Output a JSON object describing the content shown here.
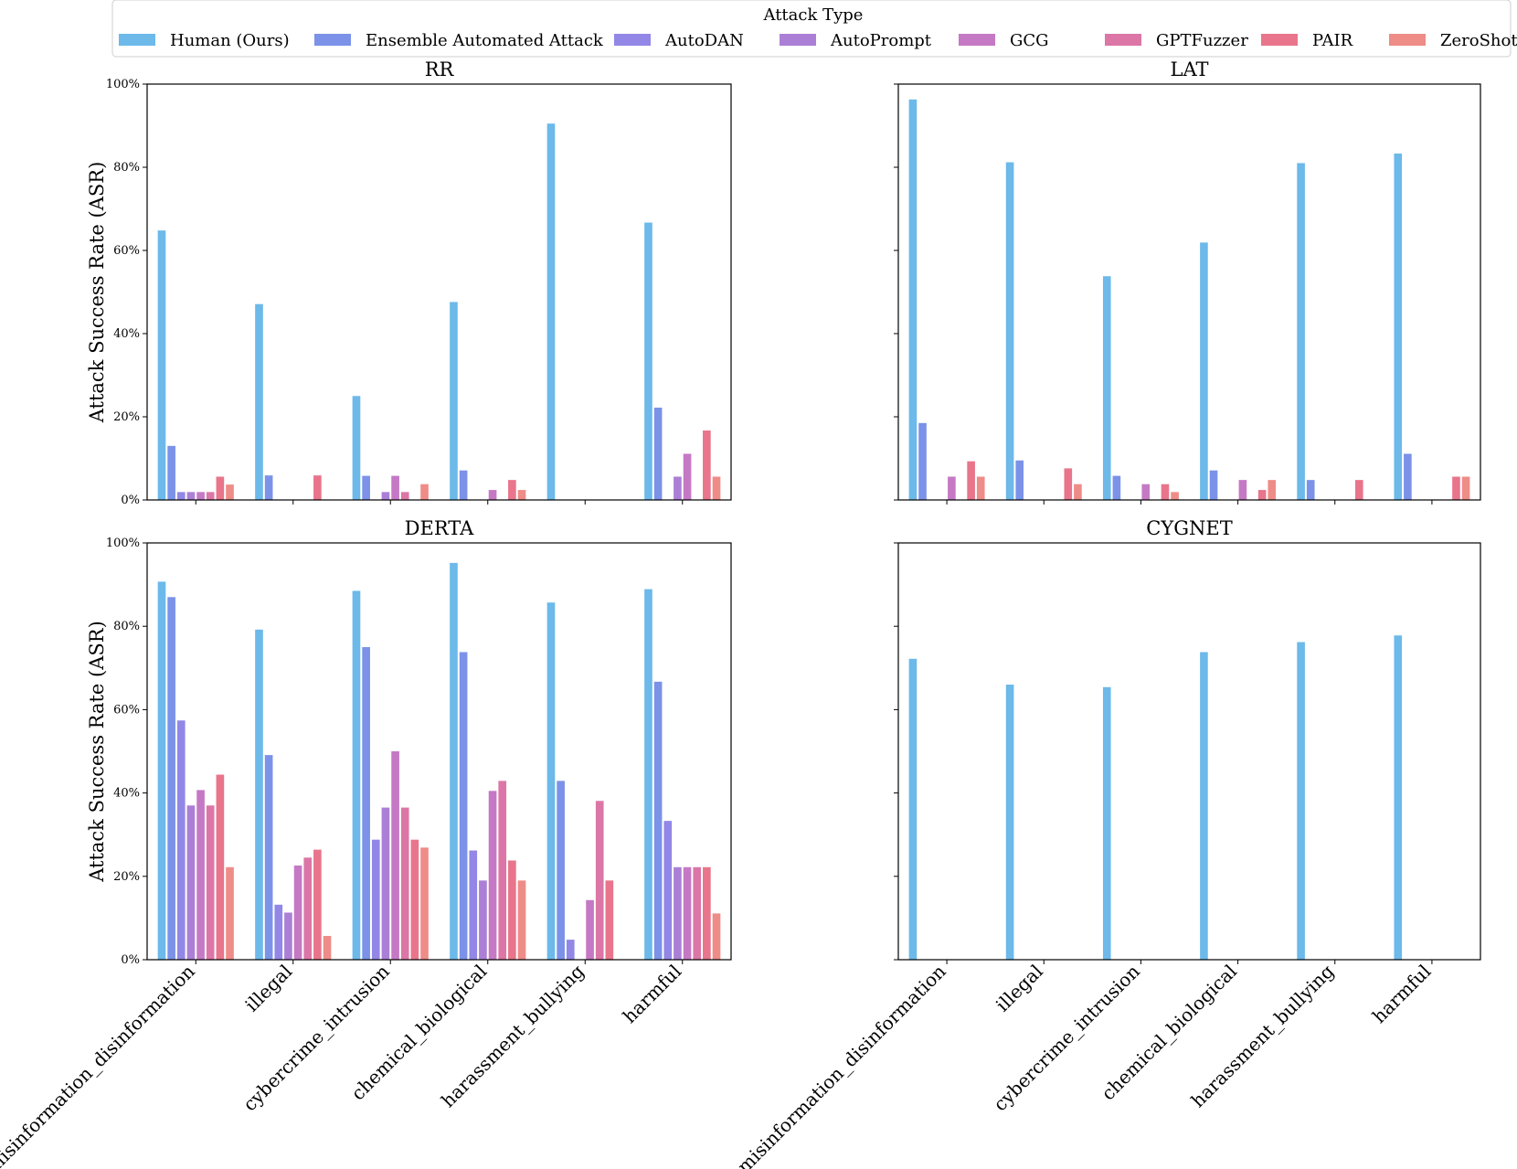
{
  "chart_data": {
    "type": "bar",
    "legend": {
      "title": "Attack Type",
      "placement": "top-center",
      "entries": [
        {
          "name": "Human (Ours)",
          "color": "#6cb9ea"
        },
        {
          "name": "Ensemble Automated Attack",
          "color": "#7b92e8"
        },
        {
          "name": "AutoDAN",
          "color": "#9287e6"
        },
        {
          "name": "AutoPrompt",
          "color": "#ac7fd6"
        },
        {
          "name": "GCG",
          "color": "#c579c4"
        },
        {
          "name": "GPTFuzzer",
          "color": "#dc76a6"
        },
        {
          "name": "PAIR",
          "color": "#e8758b"
        },
        {
          "name": "ZeroShot",
          "color": "#ee8c88"
        }
      ]
    },
    "ylabel": "Attack Success Rate (ASR)",
    "ylim": [
      0,
      100
    ],
    "yticks": [
      "0%",
      "20%",
      "40%",
      "60%",
      "80%",
      "100%"
    ],
    "categories": [
      "misinformation_disinformation",
      "illegal",
      "cybercrime_intrusion",
      "chemical_biological",
      "harassment_bullying",
      "harmful"
    ],
    "subplots": [
      {
        "title": "RR",
        "series": [
          {
            "name": "Human (Ours)",
            "values": [
              64.8,
              47.1,
              25.0,
              47.6,
              90.5,
              66.7
            ]
          },
          {
            "name": "Ensemble Automated Attack",
            "values": [
              13.0,
              5.9,
              5.8,
              7.1,
              0,
              22.2
            ]
          },
          {
            "name": "AutoDAN",
            "values": [
              1.9,
              0,
              0,
              0,
              0,
              0
            ]
          },
          {
            "name": "AutoPrompt",
            "values": [
              1.9,
              0,
              1.9,
              0,
              0,
              5.6
            ]
          },
          {
            "name": "GCG",
            "values": [
              1.9,
              0,
              5.8,
              2.4,
              0,
              11.1
            ]
          },
          {
            "name": "GPTFuzzer",
            "values": [
              1.9,
              0,
              1.9,
              0,
              0,
              0
            ]
          },
          {
            "name": "PAIR",
            "values": [
              5.6,
              5.9,
              0,
              4.8,
              0,
              16.7
            ]
          },
          {
            "name": "ZeroShot",
            "values": [
              3.7,
              0,
              3.8,
              2.4,
              0,
              5.6
            ]
          }
        ]
      },
      {
        "title": "LAT",
        "series": [
          {
            "name": "Human (Ours)",
            "values": [
              96.3,
              81.2,
              53.8,
              61.9,
              81.0,
              83.3
            ]
          },
          {
            "name": "Ensemble Automated Attack",
            "values": [
              18.5,
              9.5,
              5.8,
              7.1,
              4.8,
              11.1
            ]
          },
          {
            "name": "AutoDAN",
            "values": [
              0,
              0,
              0,
              0,
              0,
              0
            ]
          },
          {
            "name": "AutoPrompt",
            "values": [
              0,
              0,
              0,
              0,
              0,
              0
            ]
          },
          {
            "name": "GCG",
            "values": [
              5.6,
              0,
              3.8,
              4.8,
              0,
              0
            ]
          },
          {
            "name": "GPTFuzzer",
            "values": [
              0,
              0,
              0,
              0,
              0,
              0
            ]
          },
          {
            "name": "PAIR",
            "values": [
              9.3,
              7.6,
              3.8,
              2.4,
              4.8,
              5.6
            ]
          },
          {
            "name": "ZeroShot",
            "values": [
              5.6,
              3.8,
              1.9,
              4.8,
              0,
              5.6
            ]
          }
        ]
      },
      {
        "title": "DERTA",
        "series": [
          {
            "name": "Human (Ours)",
            "values": [
              90.7,
              79.2,
              88.5,
              95.2,
              85.7,
              88.9
            ]
          },
          {
            "name": "Ensemble Automated Attack",
            "values": [
              87.0,
              49.1,
              75.0,
              73.8,
              42.9,
              66.7
            ]
          },
          {
            "name": "AutoDAN",
            "values": [
              57.4,
              13.2,
              28.8,
              26.2,
              4.8,
              33.3
            ]
          },
          {
            "name": "AutoPrompt",
            "values": [
              37.0,
              11.3,
              36.5,
              19.0,
              0,
              22.2
            ]
          },
          {
            "name": "GCG",
            "values": [
              40.7,
              22.6,
              50.0,
              40.5,
              14.3,
              22.2
            ]
          },
          {
            "name": "GPTFuzzer",
            "values": [
              37.0,
              24.5,
              36.5,
              42.9,
              38.1,
              22.2
            ]
          },
          {
            "name": "PAIR",
            "values": [
              44.4,
              26.4,
              28.8,
              23.8,
              19.0,
              22.2
            ]
          },
          {
            "name": "ZeroShot",
            "values": [
              22.2,
              5.7,
              26.9,
              19.0,
              0,
              11.1
            ]
          }
        ]
      },
      {
        "title": "CYGNET",
        "series": [
          {
            "name": "Human (Ours)",
            "values": [
              72.2,
              66.0,
              65.4,
              73.8,
              76.2,
              77.8
            ]
          },
          {
            "name": "Ensemble Automated Attack",
            "values": [
              0,
              0,
              0,
              0,
              0,
              0
            ]
          },
          {
            "name": "AutoDAN",
            "values": [
              0,
              0,
              0,
              0,
              0,
              0
            ]
          },
          {
            "name": "AutoPrompt",
            "values": [
              0,
              0,
              0,
              0,
              0,
              0
            ]
          },
          {
            "name": "GCG",
            "values": [
              0,
              0,
              0,
              0,
              0,
              0
            ]
          },
          {
            "name": "GPTFuzzer",
            "values": [
              0,
              0,
              0,
              0,
              0,
              0
            ]
          },
          {
            "name": "PAIR",
            "values": [
              0,
              0,
              0,
              0,
              0,
              0
            ]
          },
          {
            "name": "ZeroShot",
            "values": [
              0,
              0,
              0,
              0,
              0,
              0
            ]
          }
        ]
      }
    ]
  }
}
